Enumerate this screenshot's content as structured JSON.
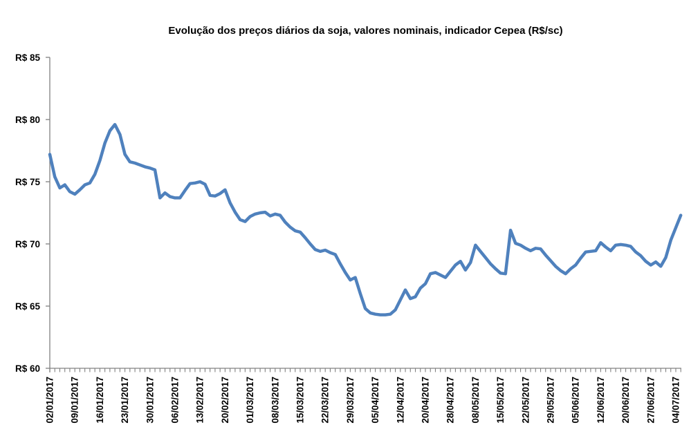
{
  "chart_data": {
    "type": "line",
    "title": "Evolução dos preços diários da soja, valores nominais, indicador Cepea (R$/sc)",
    "xlabel": "",
    "ylabel": "",
    "grid": false,
    "legend": "none",
    "y_axis": {
      "min": 60,
      "max": 85,
      "step": 5,
      "tick_labels": [
        "R$ 85",
        "R$ 80",
        "R$ 75",
        "R$ 70",
        "R$ 65",
        "R$ 60"
      ]
    },
    "x_label_every": 5,
    "x_tick_labels": [
      "02/01/2017",
      "09/01/2017",
      "16/01/2017",
      "23/01/2017",
      "30/01/2017",
      "06/02/2017",
      "13/02/2017",
      "20/02/2017",
      "01/03/2017",
      "08/03/2017",
      "15/03/2017",
      "22/03/2017",
      "29/03/2017",
      "05/04/2017",
      "12/04/2017",
      "20/04/2017",
      "28/04/2017",
      "08/05/2017",
      "15/05/2017",
      "22/05/2017",
      "29/05/2017",
      "05/06/2017",
      "12/06/2017",
      "20/06/2017",
      "27/06/2017",
      "04/07/2017"
    ],
    "dates": [
      "02/01/2017",
      "03/01/2017",
      "04/01/2017",
      "05/01/2017",
      "06/01/2017",
      "09/01/2017",
      "10/01/2017",
      "11/01/2017",
      "12/01/2017",
      "13/01/2017",
      "16/01/2017",
      "17/01/2017",
      "18/01/2017",
      "19/01/2017",
      "20/01/2017",
      "23/01/2017",
      "24/01/2017",
      "25/01/2017",
      "26/01/2017",
      "27/01/2017",
      "30/01/2017",
      "31/01/2017",
      "01/02/2017",
      "02/02/2017",
      "03/02/2017",
      "06/02/2017",
      "07/02/2017",
      "08/02/2017",
      "09/02/2017",
      "10/02/2017",
      "13/02/2017",
      "14/02/2017",
      "15/02/2017",
      "16/02/2017",
      "17/02/2017",
      "20/02/2017",
      "21/02/2017",
      "22/02/2017",
      "23/02/2017",
      "24/02/2017",
      "01/03/2017",
      "02/03/2017",
      "03/03/2017",
      "06/03/2017",
      "07/03/2017",
      "08/03/2017",
      "09/03/2017",
      "10/03/2017",
      "13/03/2017",
      "14/03/2017",
      "15/03/2017",
      "16/03/2017",
      "17/03/2017",
      "20/03/2017",
      "21/03/2017",
      "22/03/2017",
      "23/03/2017",
      "24/03/2017",
      "27/03/2017",
      "28/03/2017",
      "29/03/2017",
      "30/03/2017",
      "31/03/2017",
      "03/04/2017",
      "04/04/2017",
      "05/04/2017",
      "06/04/2017",
      "07/04/2017",
      "10/04/2017",
      "11/04/2017",
      "12/04/2017",
      "13/04/2017",
      "17/04/2017",
      "18/04/2017",
      "19/04/2017",
      "20/04/2017",
      "24/04/2017",
      "25/04/2017",
      "26/04/2017",
      "27/04/2017",
      "28/04/2017",
      "02/05/2017",
      "03/05/2017",
      "04/05/2017",
      "05/05/2017",
      "08/05/2017",
      "09/05/2017",
      "10/05/2017",
      "11/05/2017",
      "12/05/2017",
      "15/05/2017",
      "16/05/2017",
      "17/05/2017",
      "18/05/2017",
      "19/05/2017",
      "22/05/2017",
      "23/05/2017",
      "24/05/2017",
      "25/05/2017",
      "26/05/2017",
      "29/05/2017",
      "30/05/2017",
      "31/05/2017",
      "01/06/2017",
      "02/06/2017",
      "05/06/2017",
      "06/06/2017",
      "07/06/2017",
      "08/06/2017",
      "09/06/2017",
      "12/06/2017",
      "13/06/2017",
      "14/06/2017",
      "16/06/2017",
      "19/06/2017",
      "20/06/2017",
      "21/06/2017",
      "22/06/2017",
      "23/06/2017",
      "26/06/2017",
      "27/06/2017",
      "28/06/2017",
      "29/06/2017",
      "30/06/2017",
      "03/07/2017",
      "04/07/2017",
      "05/07/2017"
    ],
    "values": [
      77.2,
      75.4,
      74.5,
      74.75,
      74.2,
      74.0,
      74.35,
      74.75,
      74.9,
      75.6,
      76.7,
      78.1,
      79.1,
      79.6,
      78.8,
      77.2,
      76.6,
      76.5,
      76.35,
      76.2,
      76.1,
      75.95,
      73.7,
      74.1,
      73.8,
      73.7,
      73.7,
      74.3,
      74.85,
      74.9,
      75.0,
      74.8,
      73.9,
      73.85,
      74.05,
      74.35,
      73.3,
      72.55,
      71.95,
      71.8,
      72.2,
      72.4,
      72.5,
      72.55,
      72.25,
      72.4,
      72.3,
      71.75,
      71.35,
      71.05,
      70.95,
      70.5,
      70.0,
      69.55,
      69.4,
      69.5,
      69.3,
      69.15,
      68.4,
      67.7,
      67.1,
      67.3,
      66.0,
      64.8,
      64.45,
      64.35,
      64.3,
      64.3,
      64.35,
      64.7,
      65.5,
      66.3,
      65.6,
      65.75,
      66.45,
      66.8,
      67.6,
      67.7,
      67.5,
      67.3,
      67.8,
      68.3,
      68.6,
      67.9,
      68.5,
      69.9,
      69.4,
      68.9,
      68.4,
      68.0,
      67.65,
      67.6,
      71.1,
      70.05,
      69.9,
      69.65,
      69.45,
      69.65,
      69.6,
      69.1,
      68.65,
      68.2,
      67.85,
      67.6,
      68.0,
      68.3,
      68.85,
      69.35,
      69.4,
      69.45,
      70.1,
      69.75,
      69.45,
      69.9,
      69.95,
      69.9,
      69.8,
      69.35,
      69.05,
      68.6,
      68.3,
      68.55,
      68.2,
      68.9,
      70.3,
      71.3,
      72.3
    ],
    "colors": {
      "line": "#4F81BD",
      "axis": "#808080",
      "text": "#000000",
      "background": "#FFFFFF"
    }
  }
}
